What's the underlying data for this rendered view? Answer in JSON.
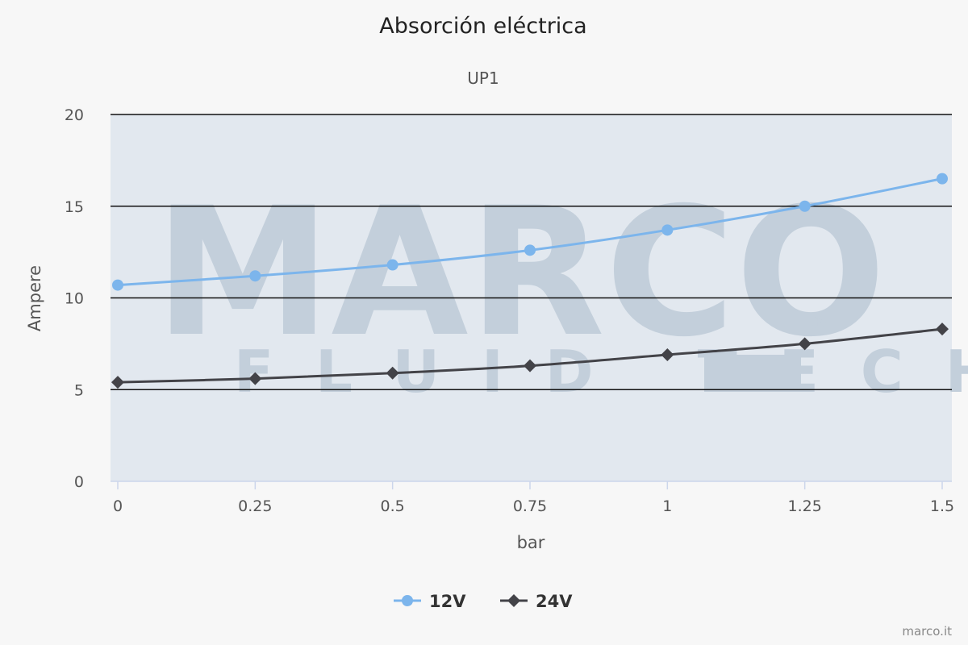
{
  "chart_data": {
    "type": "line",
    "title": "Absorción eléctrica",
    "subtitle": "UP1",
    "xlabel": "bar",
    "ylabel": "Ampere",
    "x": [
      0,
      0.25,
      0.5,
      0.75,
      1,
      1.25,
      1.5
    ],
    "x_tick_labels": [
      "0",
      "0.25",
      "0.5",
      "0.75",
      "1",
      "1.25",
      "1.5"
    ],
    "y_tick_labels": [
      "0",
      "5",
      "10",
      "15",
      "20"
    ],
    "xlim": [
      0,
      1.5
    ],
    "ylim": [
      0,
      20
    ],
    "grid": true,
    "legend_position": "bottom-center",
    "series": [
      {
        "name": "12V",
        "color": "#7cb5ec",
        "marker": "circle",
        "values": [
          10.7,
          11.2,
          11.8,
          12.6,
          13.7,
          15.0,
          16.5
        ]
      },
      {
        "name": "24V",
        "color": "#434348",
        "marker": "diamond",
        "values": [
          5.4,
          5.6,
          5.9,
          6.3,
          6.9,
          7.5,
          8.3
        ]
      }
    ],
    "credits": "marco.it",
    "watermark": {
      "line1": "MARCO",
      "line2": "FLUID TECH",
      "mark": "®"
    }
  }
}
